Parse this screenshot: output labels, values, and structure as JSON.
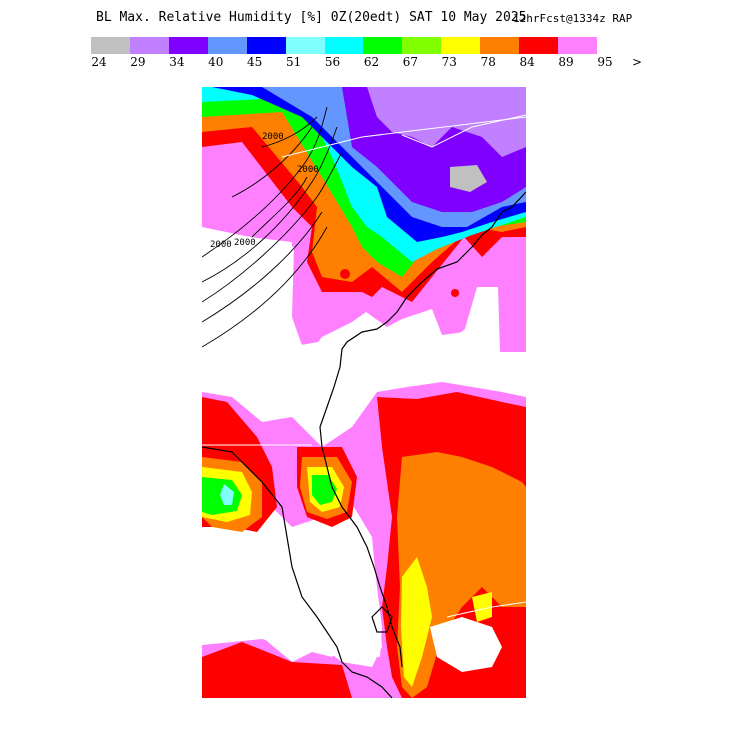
{
  "title": {
    "main": "BL Max. Relative Humidity [%] 0Z(20edt) SAT 10 May 2025",
    "sub": "12hrFcst@1334z RAP"
  },
  "colorbar": {
    "colors": [
      "#c0c0c0",
      "#c080ff",
      "#8000ff",
      "#6496ff",
      "#0000ff",
      "#80ffff",
      "#00ffff",
      "#00ff00",
      "#80ff00",
      "#ffff00",
      "#ff8000",
      "#ff0000",
      "#ff80ff"
    ],
    "labels": [
      "24",
      "29",
      "34",
      "40",
      "45",
      "51",
      "56",
      "62",
      "67",
      "73",
      "78",
      "84",
      "89",
      "95",
      ">"
    ]
  },
  "map": {
    "region": "Florida / Southeast US coast",
    "contour_label": "2000",
    "colors": {
      "grey": "#c0c0c0",
      "light-purple": "#c080ff",
      "purple": "#8000ff",
      "light-blue": "#6496ff",
      "blue": "#0000ff",
      "light-cyan": "#80ffff",
      "cyan": "#00ffff",
      "green": "#00ff00",
      "yellow-green": "#80ff00",
      "yellow": "#ffff00",
      "orange": "#ff8000",
      "red": "#ff0000",
      "pink": "#ff80ff"
    }
  }
}
